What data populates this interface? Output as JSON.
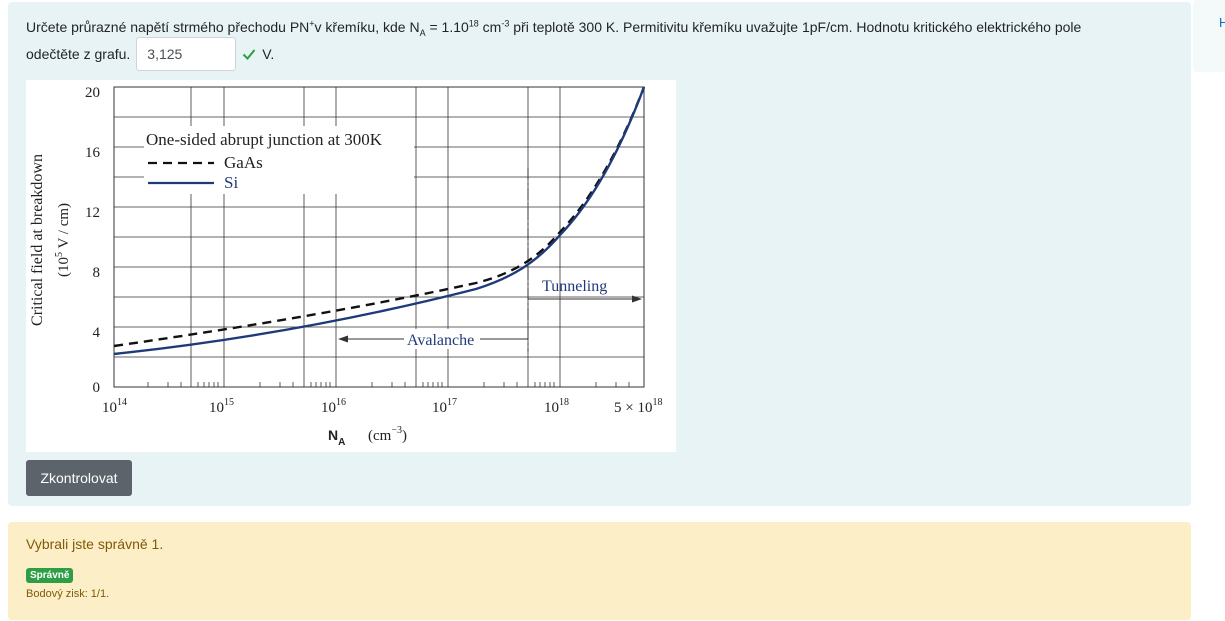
{
  "question": {
    "text_part1": "Určete průrazné napětí strmého přechodu PN",
    "text_sup_plus": "+",
    "text_part2": "v křemíku, kde N",
    "text_sub_a": "A",
    "text_part3": " = 1.10",
    "text_sup_exp18": "18",
    "text_part4": " cm",
    "text_sup_minus3": "-3",
    "text_part5": " při teplotě 300 K. Permitivitu křemíku uvažujte 1pF/cm. Hodnotu kritického elektrického pole",
    "line2_text": "odečtěte z grafu.",
    "answer_value": "3,125",
    "unit": "V.",
    "check_button_label": "Zkontrolovat"
  },
  "side_panel": {
    "label": "H"
  },
  "graph": {
    "y_axis_title": "Critical field at breakdown",
    "y_units_prefix": "(10",
    "y_units_sup": "5",
    "y_units_suffix": " V / cm)",
    "y_ticks": [
      "0",
      "4",
      "8",
      "12",
      "16",
      "20"
    ],
    "x_tick_1": "14",
    "x_tick_2": "15",
    "x_tick_3": "16",
    "x_tick_4": "17",
    "x_tick_5": "18",
    "x_tick_base": "10",
    "x_tick_last_prefix": "5 × 10",
    "x_tick_last_sup": "18",
    "x_label_main": "N",
    "x_label_sub": "A",
    "x_label_units": "(cm",
    "x_label_units_sup": "−3",
    "x_label_units_end": ")",
    "legend_title": "One-sided abrupt junction at 300K",
    "legend_gaas": "GaAs",
    "legend_si": "Si",
    "avalanche_label": "Avalanche",
    "tunneling_label": "Tunneling",
    "colors": {
      "si": "#1f3a7a",
      "gaas": "#111111"
    }
  },
  "feedback": {
    "message": "Vybrali jste správně 1.",
    "badge": "Správně",
    "points": "Bodový zisk: 1/1."
  }
}
